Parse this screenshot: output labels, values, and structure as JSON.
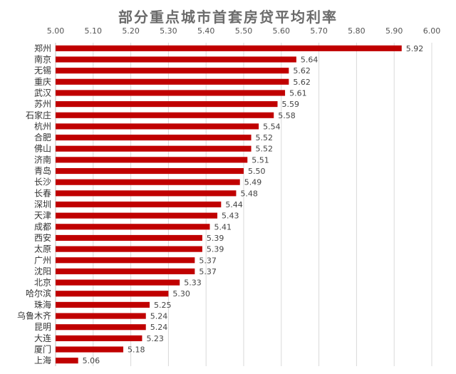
{
  "chart_data": {
    "type": "bar",
    "orientation": "horizontal",
    "title": "部分重点城市首套房贷平均利率",
    "xlabel": "",
    "ylabel": "",
    "xlim": [
      5.0,
      6.0
    ],
    "x_ticks": [
      "5.00",
      "5.10",
      "5.20",
      "5.30",
      "5.40",
      "5.50",
      "5.60",
      "5.70",
      "5.80",
      "5.90",
      "6.00"
    ],
    "x_axis_position": "top",
    "grid": true,
    "legend": "none",
    "bar_color": "#c00000",
    "categories": [
      "郑州",
      "南京",
      "无锡",
      "重庆",
      "武汉",
      "苏州",
      "石家庄",
      "杭州",
      "合肥",
      "佛山",
      "济南",
      "青岛",
      "长沙",
      "长春",
      "深圳",
      "天津",
      "成都",
      "西安",
      "太原",
      "广州",
      "沈阳",
      "北京",
      "哈尔滨",
      "珠海",
      "乌鲁木齐",
      "昆明",
      "大连",
      "厦门",
      "上海"
    ],
    "values": [
      5.92,
      5.64,
      5.62,
      5.62,
      5.61,
      5.59,
      5.58,
      5.54,
      5.52,
      5.52,
      5.51,
      5.5,
      5.49,
      5.48,
      5.44,
      5.43,
      5.41,
      5.39,
      5.39,
      5.37,
      5.37,
      5.33,
      5.3,
      5.25,
      5.24,
      5.24,
      5.23,
      5.18,
      5.06
    ],
    "labels": [
      "5.92",
      "5.64",
      "5.62",
      "5.62",
      "5.61",
      "5.59",
      "5.58",
      "5.54",
      "5.52",
      "5.52",
      "5.51",
      "5.50",
      "5.49",
      "5.48",
      "5.44",
      "5.43",
      "5.41",
      "5.39",
      "5.39",
      "5.37",
      "5.37",
      "5.33",
      "5.30",
      "5.25",
      "5.24",
      "5.24",
      "5.23",
      "5.18",
      "5.06"
    ]
  }
}
